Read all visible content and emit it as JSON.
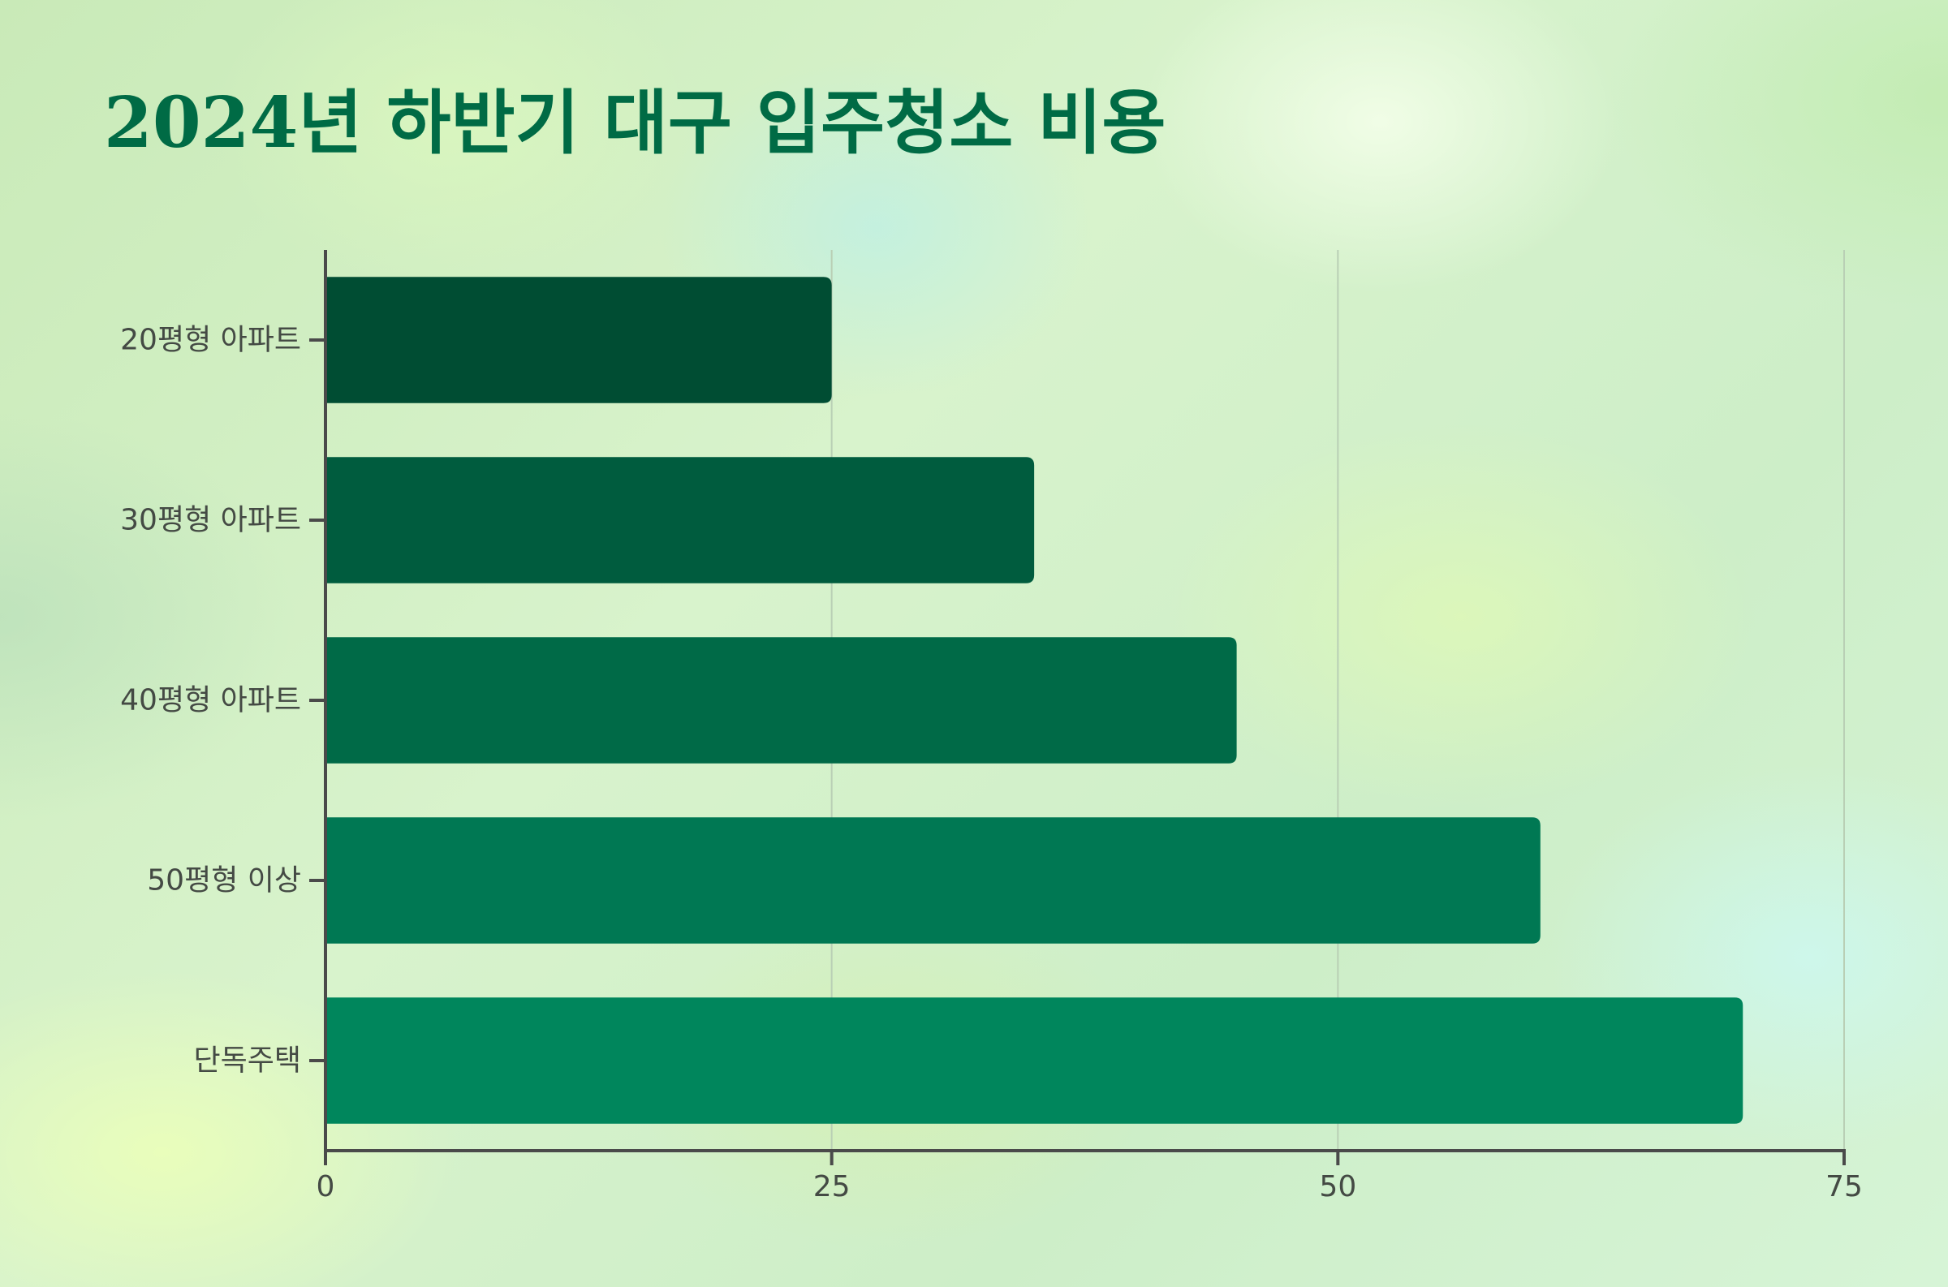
{
  "chart_data": {
    "type": "bar",
    "orientation": "horizontal",
    "title": "2024년 하반기 대구 입주청소 비용",
    "xlabel": "",
    "ylabel": "",
    "categories": [
      "20평형 아파트",
      "30평형 아파트",
      "40평형 아파트",
      "50평형 이상",
      "단독주택"
    ],
    "values": [
      25,
      35,
      45,
      60,
      70
    ],
    "xlim": [
      0,
      75
    ],
    "xticks": [
      0,
      25,
      50,
      75
    ],
    "grid": "vertical",
    "legend": "none",
    "colors": [
      "#004d33",
      "#005c3e",
      "#006a47",
      "#007853",
      "#00865c"
    ],
    "axis_color": "#4a4a4a",
    "grid_color": "#b9cfb5",
    "title_color": "#006b45"
  }
}
